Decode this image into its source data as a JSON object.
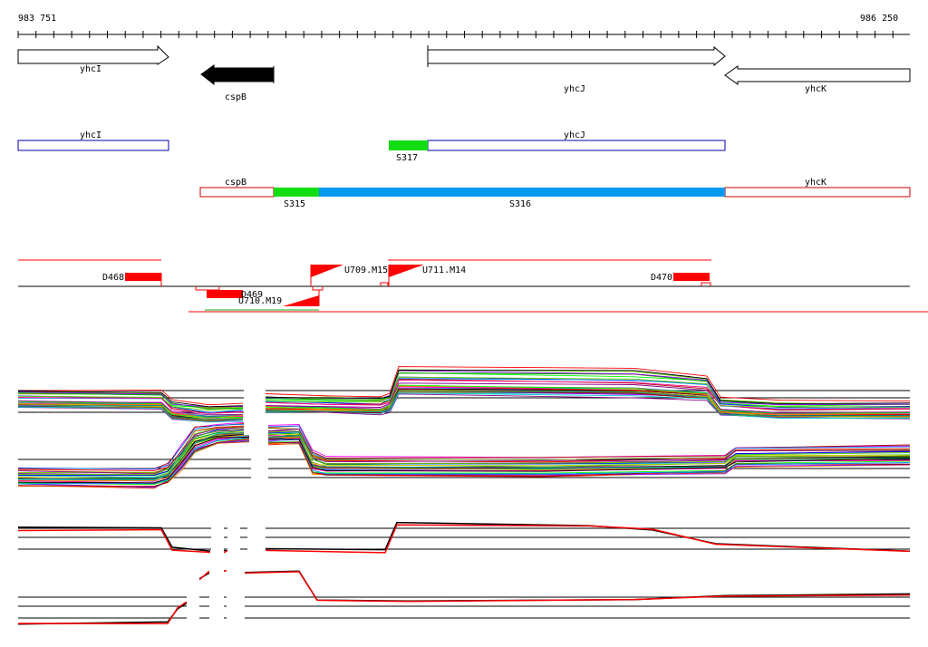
{
  "coordinates": {
    "start": "983 751",
    "end": "986 250"
  },
  "colors": {
    "gene_fill": "#000000",
    "feature_blue": "#0000aa",
    "feature_red": "#cc0000",
    "segment_green": "#11dd11",
    "segment_blue": "#0099ee",
    "signal_red": "#ff0000"
  },
  "genes": [
    {
      "label": "yhcI",
      "strand": "+",
      "filled": false
    },
    {
      "label": "cspB",
      "strand": "-",
      "filled": true
    },
    {
      "label": "yhcJ",
      "strand": "+",
      "filled": false
    },
    {
      "label": "yhcK",
      "strand": "-",
      "filled": false
    }
  ],
  "plus_features": [
    {
      "label": "yhcI"
    },
    {
      "label": "yhcJ"
    }
  ],
  "plus_segments": [
    {
      "label": "S317",
      "color": "green"
    }
  ],
  "minus_features": [
    {
      "label": "cspB"
    },
    {
      "label": "yhcK"
    }
  ],
  "minus_segments": [
    {
      "label": "S315",
      "color": "green"
    },
    {
      "label": "S316",
      "color": "blue"
    }
  ],
  "tracks": [
    {
      "label": "D468"
    },
    {
      "label": "D469"
    },
    {
      "label": "U709.M15"
    },
    {
      "label": "U710.M19"
    },
    {
      "label": "U711.M14"
    },
    {
      "label": "D470"
    }
  ]
}
